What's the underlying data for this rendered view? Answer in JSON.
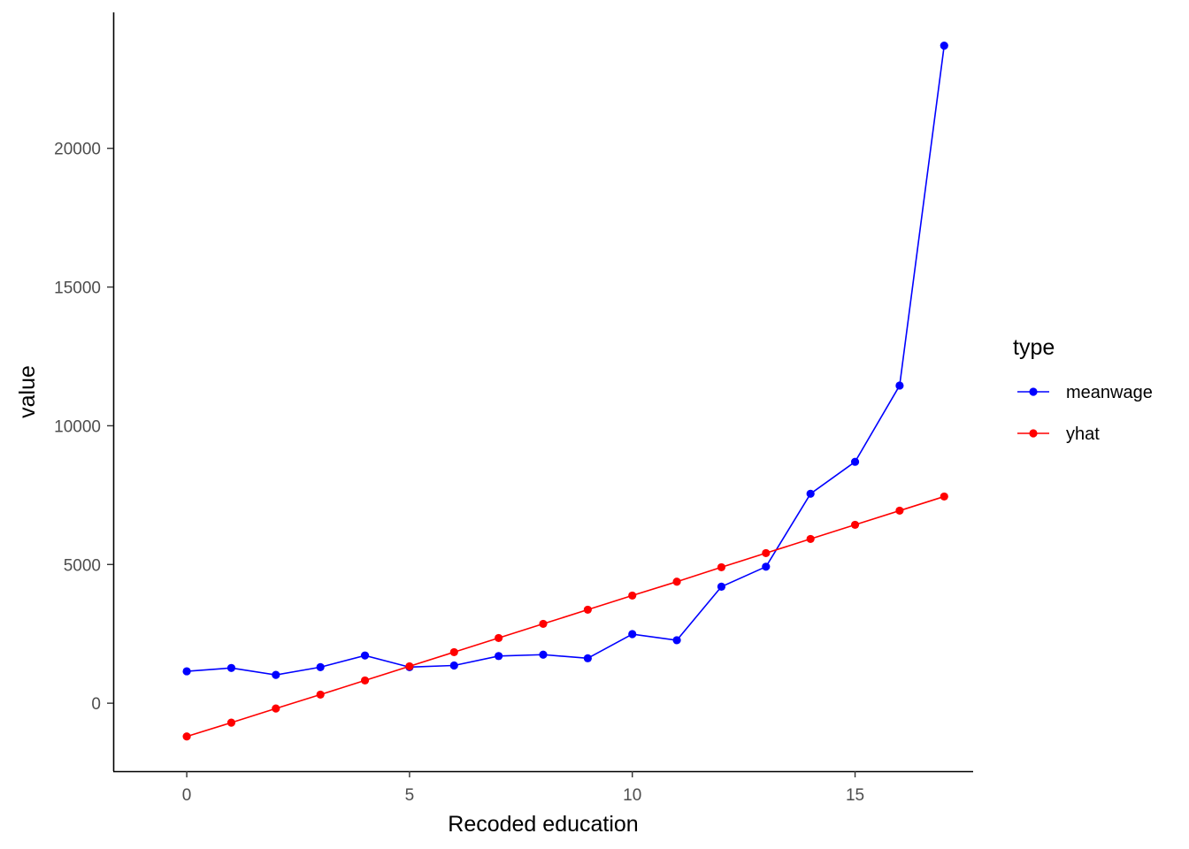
{
  "chart_data": {
    "type": "line",
    "title": "",
    "xlabel": "Recoded education",
    "ylabel": "value",
    "xlim": [
      -1.65,
      17.65
    ],
    "ylim": [
      -2450,
      24900
    ],
    "x_ticks": [
      0,
      5,
      10,
      15
    ],
    "y_ticks": [
      0,
      5000,
      10000,
      15000,
      20000
    ],
    "grid": false,
    "legend": {
      "title": "type",
      "placement": "right"
    },
    "x": [
      0,
      1,
      2,
      3,
      4,
      5,
      6,
      7,
      8,
      9,
      10,
      11,
      12,
      13,
      14,
      15,
      16,
      17
    ],
    "series": [
      {
        "name": "meanwage",
        "color": "#0000ff",
        "values": [
          1150,
          1270,
          1020,
          1300,
          1720,
          1300,
          1360,
          1700,
          1750,
          1620,
          2490,
          2270,
          4200,
          4920,
          7550,
          8700,
          11450,
          23700
        ]
      },
      {
        "name": "yhat",
        "color": "#ff0000",
        "values": [
          -1200,
          -700,
          -190,
          310,
          820,
          1330,
          1840,
          2350,
          2860,
          3370,
          3880,
          4380,
          4900,
          5410,
          5920,
          6430,
          6940,
          7450
        ]
      }
    ]
  }
}
